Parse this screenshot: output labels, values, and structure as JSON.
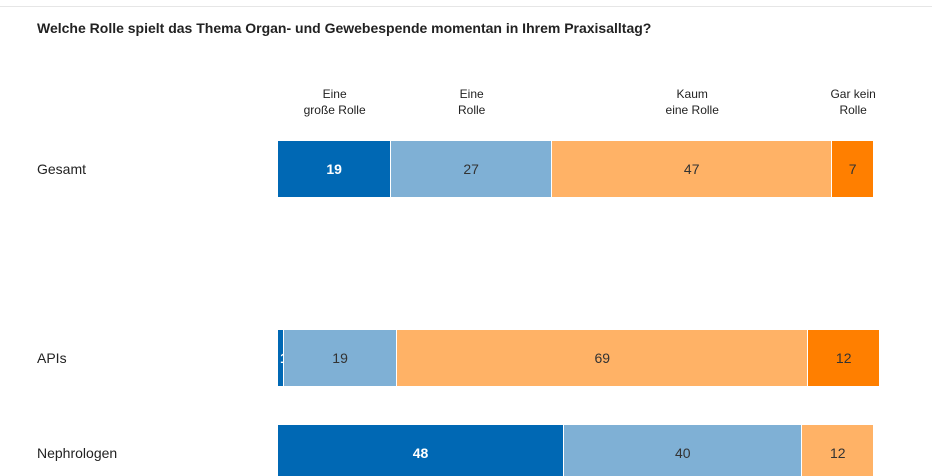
{
  "chart_data": {
    "type": "stacked-bar-horizontal",
    "title": "Welche Rolle spielt das Thema Organ- und Gewebespende momentan in Ihrem Praxisalltag?",
    "categories": [
      "Gesamt",
      "APIs",
      "Nephrologen"
    ],
    "xlim": [
      0,
      100
    ],
    "series": [
      {
        "name": "Eine\ngroße Rolle",
        "color": "#0068b4",
        "values": [
          19,
          1,
          48
        ]
      },
      {
        "name": "Eine\nRolle",
        "color": "#7fb0d5",
        "values": [
          27,
          19,
          40
        ]
      },
      {
        "name": "Kaum\neine Rolle",
        "color": "#ffb266",
        "values": [
          47,
          69,
          12
        ]
      },
      {
        "name": "Gar kein\nRolle",
        "color": "#ff7f00",
        "values": [
          7,
          12,
          null
        ]
      }
    ]
  }
}
